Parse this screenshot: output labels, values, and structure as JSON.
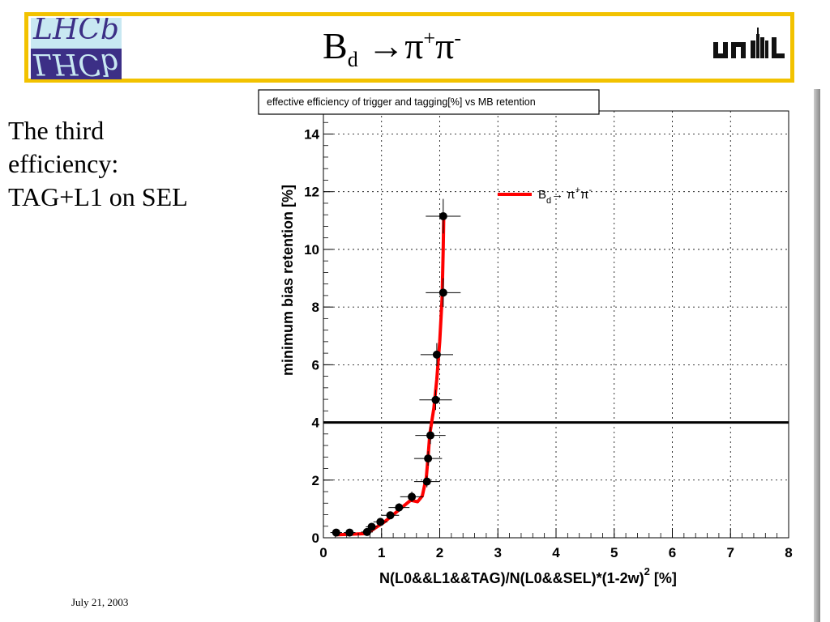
{
  "slide": {
    "title_main": "B",
    "title_sub": "d",
    "title_rest": " →π",
    "title_sup1": "+",
    "title_pi2": "π",
    "title_sup2": "-",
    "side_text": [
      "The third",
      "efficiency:",
      "TAG+L1 on SEL"
    ],
    "footer_date": "July 21, 2003",
    "logo_left": "LHCb",
    "logo_right": "unil",
    "frame_color": "#f2c200"
  },
  "chart_data": {
    "type": "scatter",
    "title": "effective efficiency of trigger and tagging[%] vs MB retention",
    "xlabel": "N(L0&&L1&&TAG)/N(L0&&SEL)*(1-2w)",
    "xlabel_sup": "2",
    "xlabel_unit": " [%]",
    "ylabel": "minimum bias retention [%]",
    "xlim": [
      0,
      8
    ],
    "ylim": [
      0,
      14.8
    ],
    "x_ticks": [
      "0",
      "1",
      "2",
      "3",
      "4",
      "5",
      "6",
      "7",
      "8"
    ],
    "y_ticks": [
      "0",
      "2",
      "4",
      "6",
      "8",
      "10",
      "12",
      "14"
    ],
    "grid": true,
    "legend_position": "top-right",
    "legend": {
      "text": "B",
      "sub": "d",
      "rest": "→ π",
      "sup1": "+",
      "pi2": "π",
      "sup2": "-"
    },
    "reference_line_y": 4,
    "series": [
      {
        "color": "#000000",
        "points": [
          {
            "x": 0.22,
            "y": 0.18,
            "xerr": 0.1,
            "yerr": 0.05
          },
          {
            "x": 0.45,
            "y": 0.18,
            "xerr": 0.1,
            "yerr": 0.05
          },
          {
            "x": 0.75,
            "y": 0.2,
            "xerr": 0.1,
            "yerr": 0.05
          },
          {
            "x": 0.83,
            "y": 0.38,
            "xerr": 0.1,
            "yerr": 0.08
          },
          {
            "x": 0.98,
            "y": 0.55,
            "xerr": 0.12,
            "yerr": 0.1
          },
          {
            "x": 1.15,
            "y": 0.78,
            "xerr": 0.15,
            "yerr": 0.12
          },
          {
            "x": 1.3,
            "y": 1.05,
            "xerr": 0.18,
            "yerr": 0.15
          },
          {
            "x": 1.52,
            "y": 1.42,
            "xerr": 0.2,
            "yerr": 0.18
          },
          {
            "x": 1.78,
            "y": 1.95,
            "xerr": 0.22,
            "yerr": 0.2
          },
          {
            "x": 1.8,
            "y": 2.75,
            "xerr": 0.24,
            "yerr": 0.25
          },
          {
            "x": 1.84,
            "y": 3.55,
            "xerr": 0.26,
            "yerr": 0.3
          },
          {
            "x": 1.93,
            "y": 4.78,
            "xerr": 0.28,
            "yerr": 0.35
          },
          {
            "x": 1.95,
            "y": 6.35,
            "xerr": 0.28,
            "yerr": 0.4
          },
          {
            "x": 2.06,
            "y": 8.5,
            "xerr": 0.3,
            "yerr": 0.5
          },
          {
            "x": 2.06,
            "y": 11.15,
            "xerr": 0.3,
            "yerr": 0.6
          }
        ]
      },
      {
        "color": "#ff0000",
        "curve": [
          [
            0.2,
            0.1
          ],
          [
            0.45,
            0.12
          ],
          [
            0.75,
            0.15
          ],
          [
            0.9,
            0.35
          ],
          [
            1.05,
            0.55
          ],
          [
            1.2,
            0.8
          ],
          [
            1.35,
            1.05
          ],
          [
            1.5,
            1.3
          ],
          [
            1.62,
            1.25
          ],
          [
            1.7,
            1.45
          ],
          [
            1.77,
            2.1
          ],
          [
            1.8,
            2.8
          ],
          [
            1.83,
            3.6
          ],
          [
            1.9,
            4.5
          ],
          [
            1.95,
            5.5
          ],
          [
            2.0,
            6.8
          ],
          [
            2.04,
            8.3
          ],
          [
            2.06,
            10.0
          ],
          [
            2.07,
            11.2
          ]
        ]
      }
    ]
  }
}
